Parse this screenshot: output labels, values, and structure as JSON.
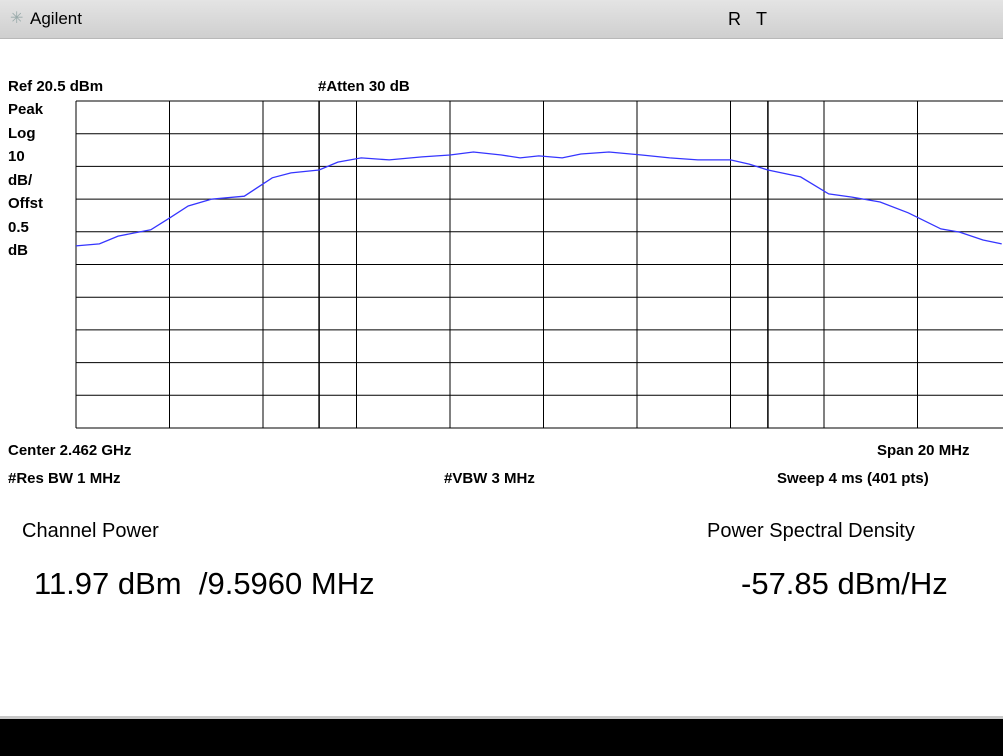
{
  "header": {
    "brand": "Agilent",
    "status": [
      "R",
      "T"
    ]
  },
  "settings": {
    "ref": "Ref 20.5 dBm",
    "atten": "#Atten 30 dB",
    "scale": [
      "Peak",
      "Log",
      "10",
      "dB/",
      "Offst",
      "0.5",
      "dB"
    ],
    "center": "Center 2.462 GHz",
    "span": "Span 20 MHz",
    "rbw": "#Res BW 1 MHz",
    "vbw": "#VBW 3 MHz",
    "sweep": "Sweep 4 ms (401 pts)"
  },
  "chart_data": {
    "type": "line",
    "x": [
      2.452,
      2.4525,
      2.4529,
      2.4536,
      2.454,
      2.4544,
      2.4549,
      2.4556,
      2.4562,
      2.4566,
      2.4572,
      2.4576,
      2.4581,
      2.4587,
      2.4594,
      2.46,
      2.4605,
      2.4611,
      2.4615,
      2.4619,
      2.4624,
      2.4628,
      2.4634,
      2.4641,
      2.4647,
      2.4653,
      2.466,
      2.4664,
      2.4668,
      2.4675,
      2.4681,
      2.4686,
      2.4692,
      2.4698,
      2.4705,
      2.4709,
      2.4714,
      2.4718
    ],
    "series": [
      {
        "color": "#3535ff",
        "values": [
          -23.8,
          -23.2,
          -20.8,
          -18.9,
          -15.3,
          -11.6,
          -9.5,
          -8.6,
          -3.0,
          -1.5,
          -0.6,
          1.8,
          3.1,
          2.5,
          3.4,
          4.0,
          4.9,
          4.0,
          3.1,
          3.7,
          3.1,
          4.3,
          4.9,
          4.0,
          3.1,
          2.5,
          2.5,
          1.2,
          -0.6,
          -2.7,
          -7.9,
          -8.9,
          -10.4,
          -13.7,
          -18.6,
          -19.6,
          -22.0,
          -23.2
        ]
      }
    ],
    "xlim": [
      2.452,
      2.472
    ],
    "ylim": [
      -79.5,
      20.5
    ],
    "xticks": [
      2.452,
      2.454,
      2.456,
      2.458,
      2.46,
      2.462,
      2.464,
      2.466,
      2.468,
      2.47,
      2.472
    ],
    "yticks": [
      20.5,
      10.5,
      0.5,
      -9.5,
      -19.5,
      -29.5,
      -39.5,
      -49.5,
      -59.5,
      -69.5,
      -79.5
    ],
    "channel_edges": [
      2.4572,
      2.4668
    ],
    "grid": true
  },
  "results": {
    "power_label": "Channel Power",
    "power_value": "11.97 dBm  /9.5960 MHz",
    "psd_label": "Power Spectral Density",
    "psd_value": "-57.85 dBm/Hz"
  }
}
